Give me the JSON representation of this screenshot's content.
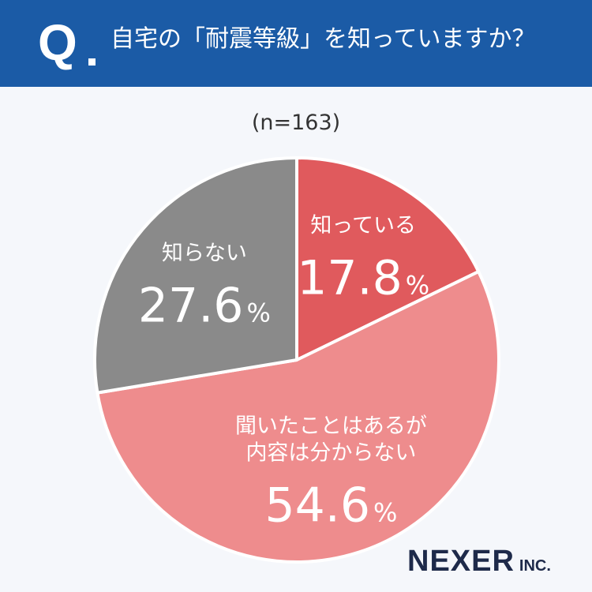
{
  "header": {
    "q_label": "Q",
    "question": "自宅の「耐震等級」を知っていますか？"
  },
  "sample_size": "(n=163)",
  "brand": {
    "name": "NEXER",
    "suffix": "INC."
  },
  "colors": {
    "header_bg": "#1b5ba6",
    "know": "#e05a5d",
    "heard_but_unknown": "#ee8c8d",
    "dont_know": "#8a8a8a"
  },
  "chart_data": {
    "type": "pie",
    "title": "",
    "slices": [
      {
        "label_lines": [
          "知っている"
        ],
        "value": 17.8,
        "display": "17.8",
        "unit": "%",
        "color": "#e05a5d"
      },
      {
        "label_lines": [
          "聞いたことはあるが",
          "内容は分からない"
        ],
        "value": 54.6,
        "display": "54.6",
        "unit": "%",
        "color": "#ee8c8d"
      },
      {
        "label_lines": [
          "知らない"
        ],
        "value": 27.6,
        "display": "27.6",
        "unit": "%",
        "color": "#8a8a8a"
      }
    ]
  }
}
